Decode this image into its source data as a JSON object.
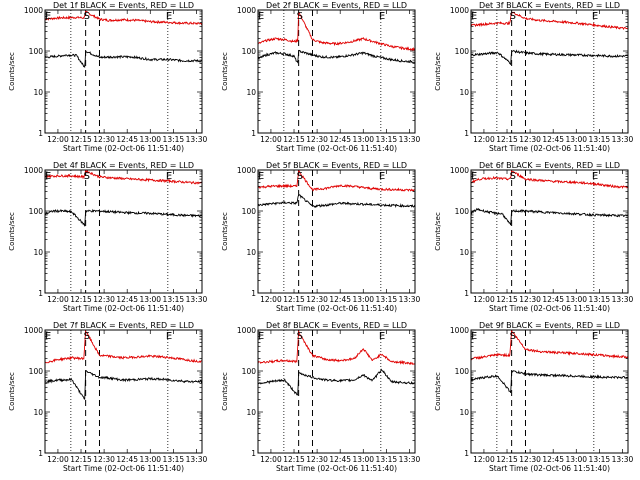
{
  "chart_data": {
    "type": "line",
    "layout": "3x3 grid",
    "ylabel": "Counts/sec",
    "xlabel": "Start Time (02-Oct-06 11:51:40)",
    "yscale": "log",
    "ylim": [
      1,
      1000
    ],
    "y_ticks": [
      "1",
      "10",
      "100",
      "1000"
    ],
    "xlim": [
      11.86,
      13.56
    ],
    "x_ticks": [
      "12:00",
      "12:15",
      "12:30",
      "12:45",
      "13:00",
      "13:15",
      "13:30"
    ],
    "series_colors": {
      "black": "#000000",
      "red": "#e00000"
    },
    "markers": [
      {
        "label": "E",
        "x": 11.88
      },
      {
        "label": "S",
        "x": 12.3
      },
      {
        "label": "E",
        "x": 13.19
      }
    ],
    "dotted_lines_x": [
      12.14,
      13.19
    ],
    "dashed_lines_x": [
      12.3,
      12.45
    ],
    "panels": [
      {
        "title": "Det 1f BLACK = Events, RED = LLD",
        "series": [
          {
            "color": "red",
            "x": [
              11.86,
              12.0,
              12.1,
              12.2,
              12.28,
              12.3,
              12.45,
              12.55,
              12.7,
              12.85,
              13.0,
              13.2,
              13.35,
              13.5,
              13.56
            ],
            "y": [
              600,
              640,
              650,
              660,
              640,
              900,
              600,
              560,
              580,
              560,
              520,
              500,
              480,
              470,
              470
            ]
          },
          {
            "color": "black",
            "x": [
              11.86,
              12.0,
              12.1,
              12.2,
              12.29,
              12.3,
              12.45,
              12.6,
              12.8,
              13.0,
              13.2,
              13.35,
              13.5,
              13.56
            ],
            "y": [
              70,
              75,
              80,
              78,
              40,
              100,
              70,
              72,
              72,
              62,
              62,
              58,
              58,
              56
            ]
          }
        ]
      },
      {
        "title": "Det 2f BLACK = Events, RED = LLD",
        "series": [
          {
            "color": "red",
            "x": [
              11.86,
              11.95,
              12.05,
              12.15,
              12.25,
              12.29,
              12.3,
              12.45,
              12.55,
              12.7,
              12.85,
              13.0,
              13.15,
              13.3,
              13.45,
              13.56
            ],
            "y": [
              150,
              180,
              200,
              190,
              170,
              180,
              900,
              190,
              160,
              150,
              165,
              200,
              160,
              130,
              115,
              110
            ]
          },
          {
            "color": "black",
            "x": [
              11.86,
              11.95,
              12.05,
              12.15,
              12.25,
              12.29,
              12.3,
              12.45,
              12.55,
              12.7,
              12.85,
              13.0,
              13.15,
              13.3,
              13.45,
              13.56
            ],
            "y": [
              65,
              80,
              90,
              85,
              75,
              50,
              100,
              80,
              72,
              70,
              78,
              90,
              72,
              62,
              56,
              55
            ]
          }
        ]
      },
      {
        "title": "Det 3f BLACK = Events, RED = LLD",
        "series": [
          {
            "color": "red",
            "x": [
              11.86,
              12.0,
              12.15,
              12.28,
              12.3,
              12.45,
              12.6,
              12.8,
              13.0,
              13.2,
              13.4,
              13.56
            ],
            "y": [
              420,
              450,
              480,
              470,
              900,
              620,
              560,
              520,
              480,
              430,
              380,
              350
            ]
          },
          {
            "color": "black",
            "x": [
              11.86,
              12.0,
              12.15,
              12.29,
              12.3,
              12.45,
              12.6,
              12.8,
              13.0,
              13.2,
              13.4,
              13.56
            ],
            "y": [
              80,
              85,
              92,
              50,
              100,
              90,
              85,
              82,
              80,
              78,
              75,
              75
            ]
          }
        ]
      },
      {
        "title": "Det 4f BLACK = Events, RED = LLD",
        "series": [
          {
            "color": "red",
            "x": [
              11.86,
              12.0,
              12.15,
              12.28,
              12.3,
              12.45,
              12.6,
              12.8,
              13.0,
              13.2,
              13.4,
              13.56
            ],
            "y": [
              700,
              720,
              720,
              680,
              950,
              680,
              640,
              600,
              570,
              540,
              500,
              480
            ]
          },
          {
            "color": "black",
            "x": [
              11.86,
              11.95,
              12.05,
              12.15,
              12.29,
              12.3,
              12.45,
              12.6,
              12.8,
              13.0,
              13.2,
              13.4,
              13.56
            ],
            "y": [
              85,
              100,
              100,
              95,
              45,
              100,
              100,
              95,
              90,
              88,
              82,
              78,
              76
            ]
          }
        ]
      },
      {
        "title": "Det 5f BLACK = Events, RED = LLD",
        "series": [
          {
            "color": "red",
            "x": [
              11.86,
              12.0,
              12.15,
              12.28,
              12.3,
              12.45,
              12.6,
              12.75,
              12.9,
              13.05,
              13.2,
              13.4,
              13.56
            ],
            "y": [
              380,
              400,
              410,
              400,
              950,
              330,
              360,
              420,
              400,
              360,
              340,
              330,
              320
            ]
          },
          {
            "color": "black",
            "x": [
              11.86,
              12.0,
              12.15,
              12.28,
              12.3,
              12.45,
              12.6,
              12.75,
              12.9,
              13.05,
              13.2,
              13.4,
              13.56
            ],
            "y": [
              140,
              150,
              160,
              155,
              250,
              130,
              140,
              155,
              150,
              145,
              140,
              135,
              130
            ]
          }
        ]
      },
      {
        "title": "Det 6f BLACK = Events, RED = LLD",
        "series": [
          {
            "color": "red",
            "x": [
              11.86,
              11.95,
              12.1,
              12.25,
              12.29,
              12.3,
              12.45,
              12.6,
              12.8,
              13.0,
              13.2,
              13.4,
              13.56
            ],
            "y": [
              500,
              600,
              640,
              600,
              620,
              950,
              600,
              560,
              520,
              500,
              460,
              400,
              380
            ]
          },
          {
            "color": "black",
            "x": [
              11.86,
              11.93,
              12.0,
              12.1,
              12.2,
              12.29,
              12.3,
              12.45,
              12.6,
              12.8,
              13.0,
              13.2,
              13.4,
              13.56
            ],
            "y": [
              90,
              110,
              100,
              90,
              85,
              45,
              100,
              100,
              95,
              90,
              85,
              80,
              78,
              76
            ]
          }
        ]
      },
      {
        "title": "Det 7f BLACK = Events, RED = LLD",
        "series": [
          {
            "color": "red",
            "x": [
              11.86,
              12.0,
              12.15,
              12.28,
              12.3,
              12.45,
              12.55,
              12.7,
              12.85,
              13.0,
              13.15,
              13.3,
              13.45,
              13.56
            ],
            "y": [
              160,
              190,
              210,
              200,
              950,
              240,
              230,
              210,
              220,
              230,
              220,
              200,
              180,
              170
            ]
          },
          {
            "color": "black",
            "x": [
              11.86,
              12.0,
              12.15,
              12.29,
              12.3,
              12.45,
              12.55,
              12.7,
              12.85,
              13.0,
              13.15,
              13.3,
              13.45,
              13.56
            ],
            "y": [
              55,
              60,
              62,
              20,
              100,
              70,
              68,
              60,
              62,
              65,
              62,
              58,
              55,
              55
            ]
          }
        ]
      },
      {
        "title": "Det 8f BLACK = Events, RED = LLD",
        "series": [
          {
            "color": "red",
            "x": [
              11.86,
              12.0,
              12.15,
              12.28,
              12.3,
              12.45,
              12.6,
              12.75,
              12.9,
              13.0,
              13.1,
              13.2,
              13.3,
              13.45,
              13.56
            ],
            "y": [
              160,
              170,
              180,
              170,
              900,
              240,
              190,
              180,
              200,
              350,
              180,
              260,
              170,
              160,
              150
            ]
          },
          {
            "color": "black",
            "x": [
              11.86,
              12.0,
              12.15,
              12.29,
              12.3,
              12.45,
              12.6,
              12.75,
              12.9,
              13.0,
              13.1,
              13.2,
              13.3,
              13.45,
              13.56
            ],
            "y": [
              50,
              55,
              60,
              25,
              90,
              70,
              60,
              58,
              60,
              80,
              58,
              110,
              55,
              52,
              50
            ]
          }
        ]
      },
      {
        "title": "Det 9f BLACK = Events, RED = LLD",
        "series": [
          {
            "color": "red",
            "x": [
              11.86,
              12.0,
              12.15,
              12.28,
              12.3,
              12.45,
              12.6,
              12.8,
              13.0,
              13.2,
              13.4,
              13.56
            ],
            "y": [
              200,
              220,
              250,
              240,
              950,
              340,
              300,
              280,
              270,
              250,
              230,
              220
            ]
          },
          {
            "color": "black",
            "x": [
              11.86,
              12.0,
              12.15,
              12.29,
              12.3,
              12.45,
              12.6,
              12.8,
              13.0,
              13.2,
              13.4,
              13.56
            ],
            "y": [
              60,
              70,
              75,
              30,
              100,
              85,
              80,
              78,
              75,
              72,
              70,
              70
            ]
          }
        ]
      }
    ]
  }
}
